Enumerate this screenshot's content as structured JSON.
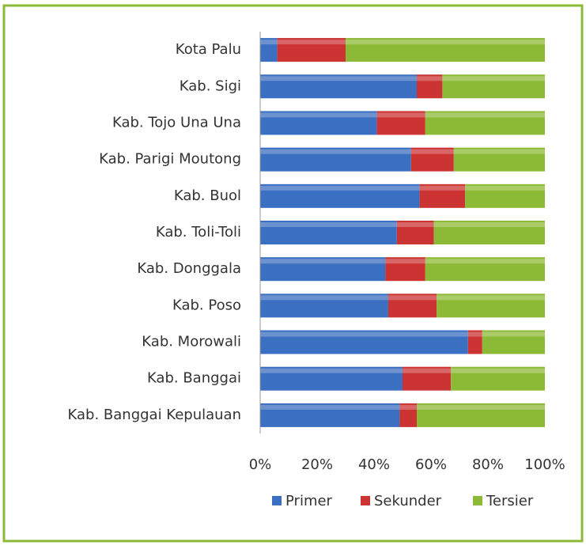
{
  "chart_data": {
    "type": "bar",
    "orientation": "horizontal",
    "stacked": "percent",
    "categories": [
      "Kota Palu",
      "Kab. Sigi",
      "Kab. Tojo Una Una",
      "Kab. Parigi Moutong",
      "Kab. Buol",
      "Kab. Toli-Toli",
      "Kab. Donggala",
      "Kab. Poso",
      "Kab. Morowali",
      "Kab. Banggai",
      "Kab. Banggai Kepulauan"
    ],
    "series": [
      {
        "name": "Primer",
        "color": "#3b6fc1",
        "values": [
          6,
          55,
          41,
          53,
          56,
          48,
          44,
          45,
          73,
          50,
          49
        ]
      },
      {
        "name": "Sekunder",
        "color": "#cc3333",
        "values": [
          24,
          9,
          17,
          15,
          16,
          13,
          14,
          17,
          5,
          17,
          6
        ]
      },
      {
        "name": "Tersier",
        "color": "#8dba36",
        "values": [
          70,
          36,
          42,
          32,
          28,
          39,
          42,
          38,
          22,
          33,
          45
        ]
      }
    ],
    "xlim": [
      0,
      100
    ],
    "xticks": [
      {
        "value": 0,
        "label": "0%"
      },
      {
        "value": 20,
        "label": "20%"
      },
      {
        "value": 40,
        "label": "40%"
      },
      {
        "value": 60,
        "label": "60%"
      },
      {
        "value": 80,
        "label": "80%"
      },
      {
        "value": 100,
        "label": "100%"
      }
    ],
    "legend": "bottom"
  }
}
